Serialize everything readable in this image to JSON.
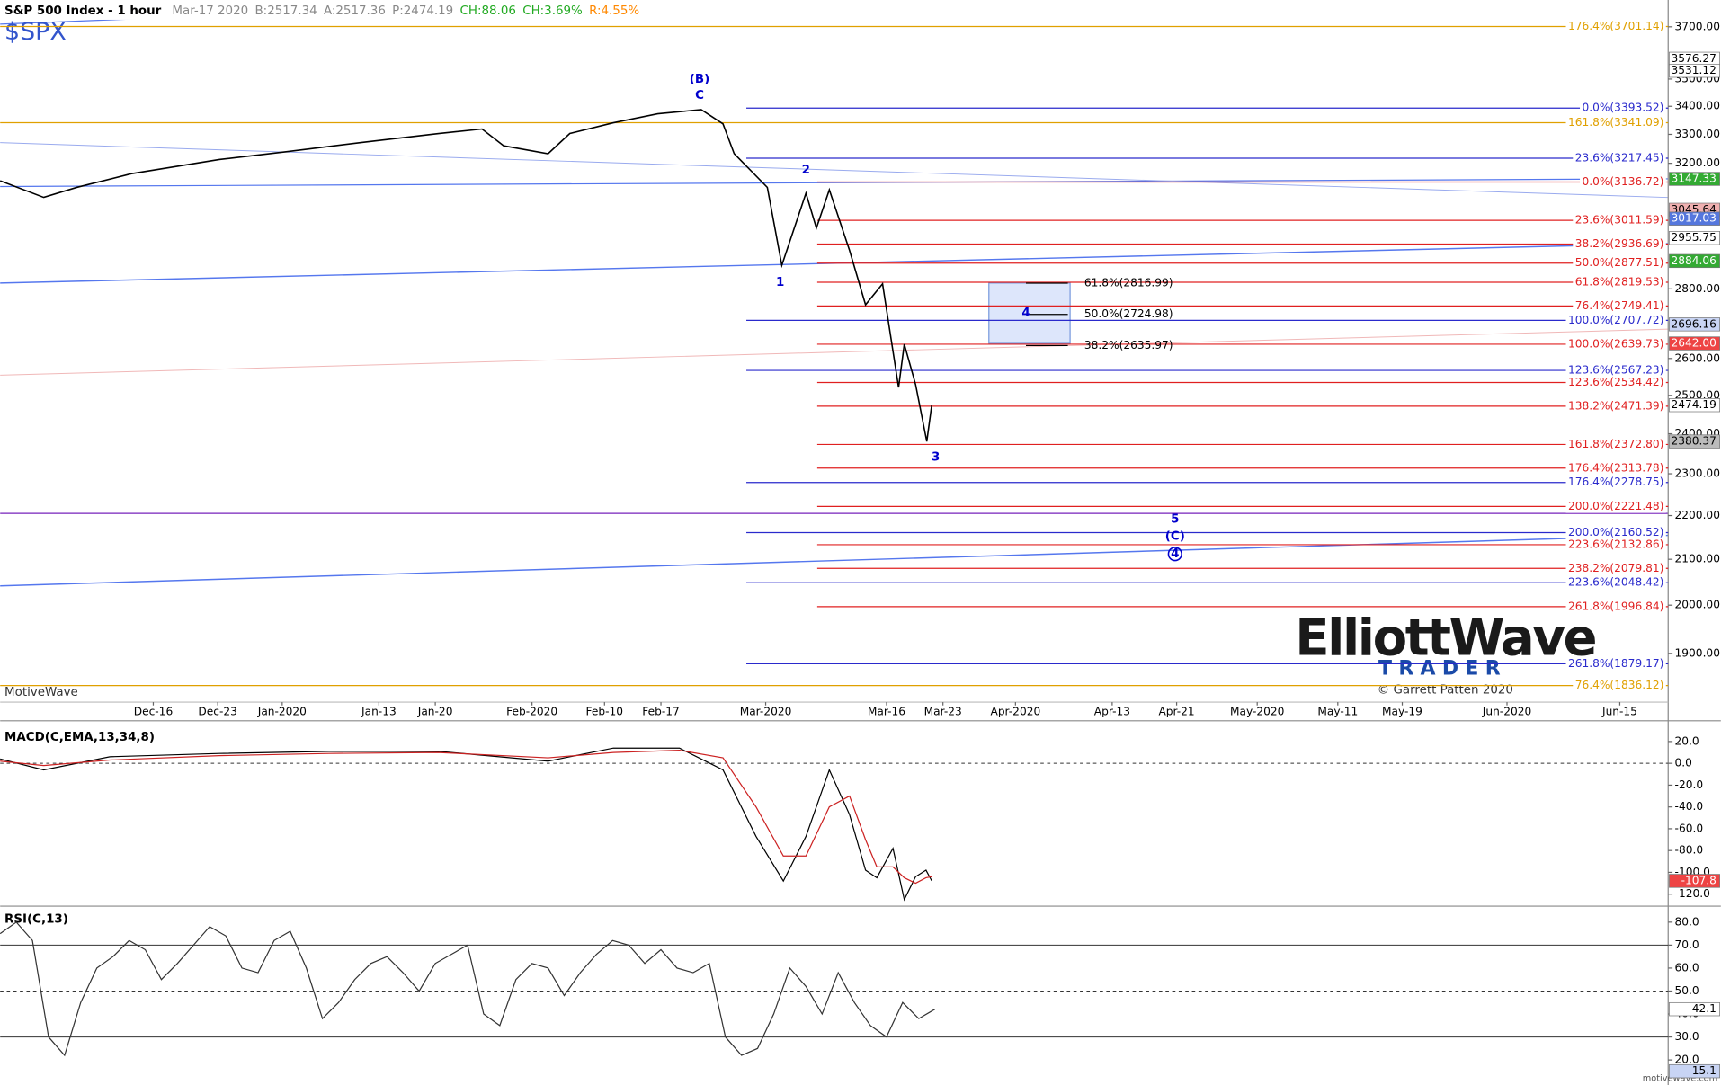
{
  "header": {
    "title": "S&P 500 Index - 1 hour",
    "symbol": "$SPX",
    "fields": [
      {
        "text": "Mar-17 2020",
        "color": "#888888"
      },
      {
        "text": "B:2517.34",
        "color": "#888888"
      },
      {
        "text": "A:2517.36",
        "color": "#888888"
      },
      {
        "text": "P:2474.19",
        "color": "#888888"
      },
      {
        "text": "CH:88.06",
        "color": "#22aa22"
      },
      {
        "text": "CH:3.69%",
        "color": "#22aa22"
      },
      {
        "text": "R:4.55%",
        "color": "#ff8800"
      }
    ]
  },
  "footer": {
    "platform": "MotiveWave",
    "copyright": "© Garrett Patten 2020",
    "logo_1": "ElliottWave",
    "logo_2": "TRADER",
    "site": "motivewave.com"
  },
  "chart_data": [
    {
      "type": "line",
      "log_scale": true,
      "xlim": [
        -4,
        203
      ],
      "ylim": [
        1804,
        3807
      ],
      "xticks": [
        {
          "value": 15,
          "label": "Dec-16"
        },
        {
          "value": 23,
          "label": "Dec-23"
        },
        {
          "value": 31,
          "label": "Jan-2020"
        },
        {
          "value": 43,
          "label": "Jan-13"
        },
        {
          "value": 50,
          "label": "Jan-20"
        },
        {
          "value": 62,
          "label": "Feb-2020"
        },
        {
          "value": 71,
          "label": "Feb-10"
        },
        {
          "value": 78,
          "label": "Feb-17"
        },
        {
          "value": 91,
          "label": "Mar-2020"
        },
        {
          "value": 106,
          "label": "Mar-16"
        },
        {
          "value": 113,
          "label": "Mar-23"
        },
        {
          "value": 122,
          "label": "Apr-2020"
        },
        {
          "value": 134,
          "label": "Apr-13"
        },
        {
          "value": 142,
          "label": "Apr-21"
        },
        {
          "value": 152,
          "label": "May-2020"
        },
        {
          "value": 162,
          "label": "May-11"
        },
        {
          "value": 170,
          "label": "May-19"
        },
        {
          "value": 183,
          "label": "Jun-2020"
        },
        {
          "value": 197,
          "label": "Jun-15"
        }
      ],
      "yticks": [
        {
          "value": 1900,
          "label": "1900.00"
        },
        {
          "value": 2000,
          "label": "2000.00"
        },
        {
          "value": 2100,
          "label": "2100.00"
        },
        {
          "value": 2200,
          "label": "2200.00"
        },
        {
          "value": 2300,
          "label": "2300.00"
        },
        {
          "value": 2400,
          "label": "2400.00"
        },
        {
          "value": 2500,
          "label": "2500.00"
        },
        {
          "value": 2600,
          "label": "2600.00"
        },
        {
          "value": 2800,
          "label": "2800.00"
        },
        {
          "value": 3200,
          "label": "3200.00"
        },
        {
          "value": 3300,
          "label": "3300.00"
        },
        {
          "value": 3400,
          "label": "3400.00"
        },
        {
          "value": 3500,
          "label": "3500.00"
        },
        {
          "value": 3700,
          "label": "3700.00"
        }
      ],
      "series": [
        {
          "color": "#000000",
          "x": [
            -4,
            1.4,
            5.5,
            12.3,
            23.2,
            31.6,
            40.9,
            50.4,
            55.8,
            58.5,
            64,
            66.7,
            72.1,
            77.6,
            83,
            85.7,
            87.1,
            91.2,
            93,
            96,
            97.3,
            98.9,
            101.4,
            103.4,
            105.5,
            107.5,
            108.2,
            109.6,
            111,
            111.6
          ],
          "values": [
            3141,
            3086,
            3119,
            3165,
            3213,
            3240,
            3272,
            3303,
            3319,
            3260,
            3233,
            3303,
            3341,
            3373,
            3388,
            3337,
            3233,
            3119,
            2871,
            3100,
            2987,
            3111,
            2917,
            2753,
            2815,
            2521,
            2640,
            2529,
            2380.37,
            2474.19
          ]
        }
      ],
      "levels": [
        {
          "label": "176.4%(3701.14)",
          "value": 3701.14,
          "color": "#e0a000",
          "start": -4
        },
        {
          "label": "161.8%(3341.09)",
          "value": 3341.09,
          "color": "#e0a000",
          "start": -4
        },
        {
          "label": "76.4%(1836.12)",
          "value": 1836.12,
          "color": "#e0a000",
          "start": -4
        },
        {
          "label": "0.0%(3393.52)",
          "value": 3393.52,
          "color": "#2a2acc",
          "start": 88.6
        },
        {
          "label": "23.6%(3217.45)",
          "value": 3217.45,
          "color": "#2a2acc",
          "start": 88.6
        },
        {
          "label": "100.0%(2707.72)",
          "value": 2707.72,
          "color": "#2a2acc",
          "start": 88.6
        },
        {
          "label": "123.6%(2567.23)",
          "value": 2567.23,
          "color": "#2a2acc",
          "start": 88.6
        },
        {
          "label": "176.4%(2278.75)",
          "value": 2278.75,
          "color": "#2a2acc",
          "start": 88.6
        },
        {
          "label": "200.0%(2160.52)",
          "value": 2160.52,
          "color": "#2a2acc",
          "start": 88.6
        },
        {
          "label": "223.6%(2048.42)",
          "value": 2048.42,
          "color": "#2a2acc",
          "start": 88.6
        },
        {
          "label": "261.8%(1879.17)",
          "value": 1879.17,
          "color": "#2a2acc",
          "start": 88.6
        },
        {
          "label": "0.0%(3136.72)",
          "value": 3136.72,
          "color": "#e02020",
          "start": 97.4
        },
        {
          "label": "23.6%(3011.59)",
          "value": 3011.59,
          "color": "#e02020",
          "start": 97.4
        },
        {
          "label": "38.2%(2936.69)",
          "value": 2936.69,
          "color": "#e02020",
          "start": 97.4
        },
        {
          "label": "50.0%(2877.51)",
          "value": 2877.51,
          "color": "#e02020",
          "start": 97.4
        },
        {
          "label": "61.8%(2819.53)",
          "value": 2819.53,
          "color": "#e02020",
          "start": 97.4
        },
        {
          "label": "76.4%(2749.41)",
          "value": 2749.41,
          "color": "#e02020",
          "start": 97.4
        },
        {
          "label": "100.0%(2639.73)",
          "value": 2639.73,
          "color": "#e02020",
          "start": 97.4
        },
        {
          "label": "123.6%(2534.42)",
          "value": 2534.42,
          "color": "#e02020",
          "start": 97.4
        },
        {
          "label": "138.2%(2471.39)",
          "value": 2471.39,
          "color": "#e02020",
          "start": 97.4
        },
        {
          "label": "161.8%(2372.80)",
          "value": 2372.8,
          "color": "#e02020",
          "start": 97.4
        },
        {
          "label": "176.4%(2313.78)",
          "value": 2313.78,
          "color": "#e02020",
          "start": 97.4
        },
        {
          "label": "200.0%(2221.48)",
          "value": 2221.48,
          "color": "#e02020",
          "start": 97.4
        },
        {
          "label": "223.6%(2132.86)",
          "value": 2132.86,
          "color": "#e02020",
          "start": 97.4
        },
        {
          "label": "238.2%(2079.81)",
          "value": 2079.81,
          "color": "#e02020",
          "start": 97.4
        },
        {
          "label": "261.8%(1996.84)",
          "value": 1996.84,
          "color": "#e02020",
          "start": 97.4
        },
        {
          "label": "61.8%(2816.99)",
          "value": 2816.99,
          "color": "#000000",
          "start": 123.3,
          "end": 128.5
        },
        {
          "label": "50.0%(2724.98)",
          "value": 2724.98,
          "color": "#000000",
          "start": 123.3,
          "end": 128.5
        },
        {
          "label": "38.2%(2635.97)",
          "value": 2635.97,
          "color": "#000000",
          "start": 123.3,
          "end": 128.5
        }
      ],
      "wave_labels": [
        {
          "label": "(B)",
          "x": 82.8,
          "y": 3500,
          "color": "#0000cc"
        },
        {
          "label": "C",
          "x": 82.8,
          "y": 3440,
          "color": "#0000cc"
        },
        {
          "label": "2",
          "x": 96,
          "y": 3177,
          "color": "#0000cc"
        },
        {
          "label": "1",
          "x": 92.8,
          "y": 2820,
          "color": "#0000cc"
        },
        {
          "label": "3",
          "x": 112.1,
          "y": 2341,
          "color": "#0000cc"
        },
        {
          "label": "4",
          "x": 123.3,
          "y": 2730,
          "color": "#0000cc"
        },
        {
          "label": "5",
          "x": 141.8,
          "y": 2192,
          "color": "#0000cc"
        },
        {
          "label": "(C)",
          "x": 141.8,
          "y": 2152,
          "color": "#0000cc"
        },
        {
          "label": "4",
          "x": 141.8,
          "y": 2112,
          "color": "#0000cc",
          "circled": true
        }
      ],
      "price_tags": [
        {
          "value": 3576.27,
          "label": "3576.27",
          "color": "#ffffff"
        },
        {
          "value": 3531.12,
          "label": "3531.12",
          "color": "#ffffff"
        },
        {
          "value": 3147.33,
          "label": "3147.33",
          "color": "#33aa33"
        },
        {
          "value": 3045.64,
          "label": "3045.64",
          "color": "#f0b0b0"
        },
        {
          "value": 3017.03,
          "label": "3017.03",
          "color": "#5577dd"
        },
        {
          "value": 2955.75,
          "label": "2955.75",
          "color": "#ffffff"
        },
        {
          "value": 2884.06,
          "label": "2884.06",
          "color": "#33aa33"
        },
        {
          "value": 2696.16,
          "label": "2696.16",
          "color": "#c8d4f4"
        },
        {
          "value": 2642.0,
          "label": "2642.00",
          "color": "#ee4444"
        },
        {
          "value": 2474.19,
          "label": "2474.19",
          "color": "#ffffff"
        },
        {
          "value": 2380.37,
          "label": "2380.37",
          "color": "#bbbbbb"
        }
      ]
    },
    {
      "type": "line",
      "title": "MACD(C,EMA,13,34,8)",
      "xlim": [
        -4,
        203
      ],
      "ylim": [
        -128,
        34
      ],
      "yticks": [
        {
          "value": 20,
          "label": "20.0"
        },
        {
          "value": 0,
          "label": "0.0"
        },
        {
          "value": -20,
          "label": "-20.0"
        },
        {
          "value": -40,
          "label": "-40.0"
        },
        {
          "value": -60,
          "label": "-60.0"
        },
        {
          "value": -80,
          "label": "-80.0"
        },
        {
          "value": -100,
          "label": "-100.0"
        },
        {
          "value": -120,
          "label": "-120.0"
        }
      ],
      "ref_lines": [
        0
      ],
      "series": [
        {
          "color": "#000000",
          "x": [
            -4,
            1.4,
            9.6,
            23.2,
            36.8,
            50.4,
            64,
            72.1,
            80.3,
            85.7,
            89.8,
            93.2,
            96,
            98.9,
            101.4,
            103.4,
            104.8,
            106.8,
            108.2,
            109.6,
            110.9,
            111.6
          ],
          "values": [
            4,
            -6,
            6,
            9,
            11,
            11,
            2,
            14,
            14,
            -6,
            -67,
            -108,
            -67,
            -6,
            -47,
            -98,
            -105,
            -78,
            -125,
            -104,
            -98,
            -107.8
          ]
        },
        {
          "color": "#cc2222",
          "x": [
            -4,
            1.4,
            9.6,
            23.2,
            36.8,
            50.4,
            64,
            72.1,
            80.3,
            85.7,
            89.8,
            93.2,
            96,
            98.9,
            101.4,
            103.4,
            104.8,
            106.8,
            108.2,
            109.6,
            110.9,
            111.6
          ],
          "values": [
            2,
            -2,
            3,
            7,
            9,
            10,
            5,
            10,
            12,
            5,
            -40,
            -85,
            -85,
            -40,
            -30,
            -70,
            -95,
            -95,
            -105,
            -110,
            -105,
            -104
          ]
        }
      ],
      "price_tags": [
        {
          "value": -107.8,
          "label": "-107.8",
          "color": "#ee4444"
        }
      ]
    },
    {
      "type": "line",
      "title": "RSI(C,13)",
      "xlim": [
        -4,
        203
      ],
      "ylim": [
        11,
        86
      ],
      "yticks": [
        {
          "value": 20,
          "label": "20.0"
        },
        {
          "value": 30,
          "label": "30.0"
        },
        {
          "value": 40,
          "label": "40.0"
        },
        {
          "value": 50,
          "label": "50.0"
        },
        {
          "value": 60,
          "label": "60.0"
        },
        {
          "value": 70,
          "label": "70.0"
        },
        {
          "value": 80,
          "label": "80.0"
        }
      ],
      "ref_lines": [
        70,
        50,
        30
      ],
      "series": [
        {
          "color": "#333333",
          "x": [
            -4,
            -2,
            0,
            2,
            4,
            6,
            8,
            10,
            12,
            14,
            16,
            18,
            20,
            22,
            24,
            26,
            28,
            30,
            32,
            34,
            36,
            38,
            40,
            42,
            44,
            46,
            48,
            50,
            52,
            54,
            56,
            58,
            60,
            62,
            64,
            66,
            68,
            70,
            72,
            74,
            76,
            78,
            80,
            82,
            84,
            86,
            88,
            90,
            92,
            94,
            96,
            98,
            100,
            102,
            104,
            106,
            108,
            110,
            112
          ],
          "values": [
            75,
            80,
            72,
            30,
            22,
            45,
            60,
            65,
            72,
            68,
            55,
            62,
            70,
            78,
            74,
            60,
            58,
            72,
            76,
            60,
            38,
            45,
            55,
            62,
            65,
            58,
            50,
            62,
            66,
            70,
            40,
            35,
            55,
            62,
            60,
            48,
            58,
            66,
            72,
            70,
            62,
            68,
            60,
            58,
            62,
            30,
            22,
            25,
            40,
            60,
            52,
            40,
            58,
            45,
            35,
            30,
            45,
            38,
            42.1
          ]
        }
      ],
      "price_tags": [
        {
          "value": 42.1,
          "label": "42.1",
          "color": "#ffffff"
        },
        {
          "value": 15.1,
          "label": "15.1",
          "color": "#c8d4f4"
        }
      ]
    }
  ]
}
